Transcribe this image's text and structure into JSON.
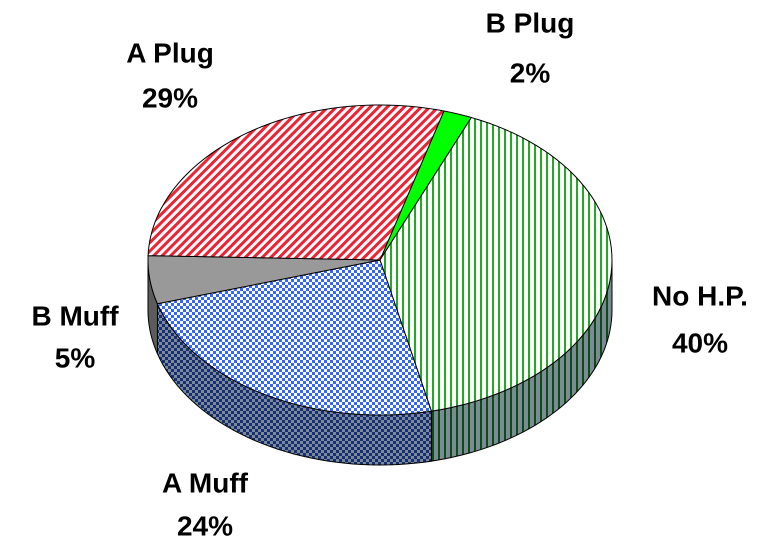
{
  "chart_data": {
    "type": "pie",
    "categories": [
      "B Plug",
      "No H.P.",
      "A Muff",
      "B Muff",
      "A Plug"
    ],
    "values": [
      2,
      40,
      24,
      5,
      29
    ],
    "value_labels": [
      "2%",
      "40%",
      "24%",
      "5%",
      "29%"
    ],
    "colors": [
      "#00ff00",
      "#22aa22",
      "#3366ff",
      "#999999",
      "#ee2233"
    ]
  }
}
